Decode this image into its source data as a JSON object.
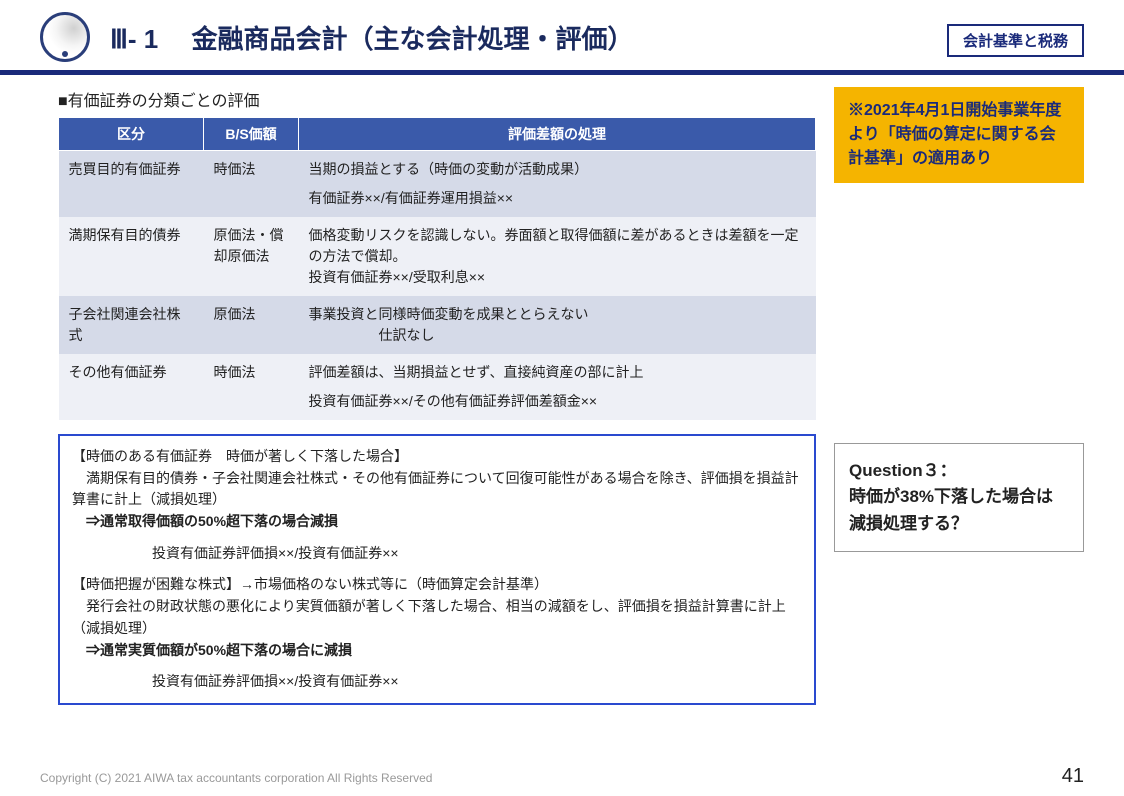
{
  "header": {
    "title": "Ⅲ- 1　 金融商品会計（主な会計処理・評価）",
    "badge": "会計基準と税務"
  },
  "section_label": "■有価証券の分類ごとの評価",
  "table": {
    "columns": [
      "区分",
      "B/S価額",
      "評価差額の処理"
    ],
    "rows": [
      {
        "c1": "売買目的有価証券",
        "c2": "時価法",
        "c3": "当期の損益とする（時価の変動が活動成果）\n\n有価証券××/有価証券運用損益××"
      },
      {
        "c1": "満期保有目的債券",
        "c2": "原価法・償却原価法",
        "c3": "価格変動リスクを認識しない。券面額と取得価額に差があるときは差額を一定の方法で償却。\n投資有価証券××/受取利息××"
      },
      {
        "c1": "子会社関連会社株式",
        "c2": "原価法",
        "c3": "事業投資と同様時価変動を成果ととらえない\n　　　　　仕訳なし"
      },
      {
        "c1": "その他有価証券",
        "c2": "時価法",
        "c3": "評価差額は、当期損益とせず、直接純資産の部に計上\n\n投資有価証券××/その他有価証券評価差額金××"
      }
    ]
  },
  "yellow_note": "※2021年4月1日開始事業年度より「時価の算定に関する会計基準」の適用あり",
  "question": "Question３：\n時価が38%下落した場合は減損処理する？",
  "bluebox": {
    "h1": "【時価のある有価証券　時価が著しく下落した場合】",
    "p1": "　満期保有目的債券・子会社関連会社株式・その他有価証券について回復可能性がある場合を除き、評価損を損益計算書に計上（減損処理）",
    "b1": "⇒通常取得価額の50%超下落の場合減損",
    "j1": "投資有価証券評価損××/投資有価証券××",
    "h2": "【時価把握が困難な株式】→市場価格のない株式等に（時価算定会計基準）",
    "p2": "　発行会社の財政状態の悪化により実質価額が著しく下落した場合、相当の減額をし、評価損を損益計算書に計上（減損処理）",
    "b2": "⇒通常実質価額が50%超下落の場合に減損",
    "j2": "投資有価証券評価損××/投資有価証券××"
  },
  "footer": {
    "copyright": "Copyright (C) 2021 AIWA tax accountants corporation All Rights Reserved",
    "page": "41"
  },
  "colors": {
    "header_navy": "#1a2a7a",
    "table_header_bg": "#3a5aaa",
    "row_odd": "#d5dae8",
    "row_even": "#eef0f6",
    "yellow": "#f5b400",
    "blue_border": "#2a4acf"
  }
}
